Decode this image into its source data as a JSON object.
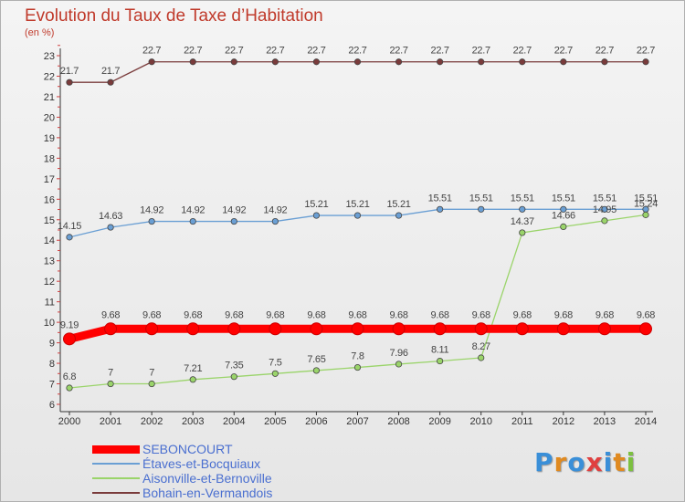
{
  "chart_data": {
    "type": "line",
    "title": "Evolution du Taux de Taxe d’Habitation",
    "ylabel": "(en %)",
    "xlabel": "",
    "x": [
      "2000",
      "2001",
      "2002",
      "2003",
      "2004",
      "2005",
      "2006",
      "2007",
      "2008",
      "2009",
      "2010",
      "2011",
      "2012",
      "2013",
      "2014"
    ],
    "ylim": [
      6,
      23
    ],
    "yticks": [
      6,
      7,
      8,
      9,
      10,
      11,
      12,
      13,
      14,
      15,
      16,
      17,
      18,
      19,
      20,
      21,
      22,
      23
    ],
    "grid": false,
    "legend_position": "bottom-left",
    "series": [
      {
        "name": "SEBONCOURT",
        "color": "#ff0000",
        "values": [
          9.19,
          9.68,
          9.68,
          9.68,
          9.68,
          9.68,
          9.68,
          9.68,
          9.68,
          9.68,
          9.68,
          9.68,
          9.68,
          9.68,
          9.68
        ],
        "labels": [
          "9.19",
          "9.68",
          "9.68",
          "9.68",
          "9.68",
          "9.68",
          "9.68",
          "9.68",
          "9.68",
          "9.68",
          "9.68",
          "9.68",
          "9.68",
          "9.68",
          "9.68"
        ]
      },
      {
        "name": "Étaves-et-Bocquiaux",
        "color": "#6a9fd4",
        "values": [
          14.15,
          14.63,
          14.92,
          14.92,
          14.92,
          14.92,
          15.21,
          15.21,
          15.21,
          15.51,
          15.51,
          15.51,
          15.51,
          15.51,
          15.51
        ],
        "labels": [
          "14.15",
          "14.63",
          "14.92",
          "14.92",
          "14.92",
          "14.92",
          "15.21",
          "15.21",
          "15.21",
          "15.51",
          "15.51",
          "15.51",
          "15.51",
          "15.51",
          "15.51"
        ]
      },
      {
        "name": "Aisonville-et-Bernoville",
        "color": "#9ad46a",
        "values": [
          6.8,
          7,
          7,
          7.21,
          7.35,
          7.5,
          7.65,
          7.8,
          7.96,
          8.11,
          8.27,
          14.37,
          14.66,
          14.95,
          15.24
        ],
        "labels": [
          "6.8",
          "7",
          "7",
          "7.21",
          "7.35",
          "7.5",
          "7.65",
          "7.8",
          "7.96",
          "8.11",
          "8.27",
          "14.37",
          "14.66",
          "14.95",
          "15.24"
        ]
      },
      {
        "name": "Bohain-en-Vermandois",
        "color": "#7a3b3b",
        "values": [
          21.7,
          21.7,
          22.7,
          22.7,
          22.7,
          22.7,
          22.7,
          22.7,
          22.7,
          22.7,
          22.7,
          22.7,
          22.7,
          22.7,
          22.7
        ],
        "labels": [
          "21.7",
          "21.7",
          "22.7",
          "22.7",
          "22.7",
          "22.7",
          "22.7",
          "22.7",
          "22.7",
          "22.7",
          "22.7",
          "22.7",
          "22.7",
          "22.7",
          "22.7"
        ]
      }
    ]
  },
  "legend": [
    "SEBONCOURT",
    "Étaves-et-Bocquiaux",
    "Aisonville-et-Bernoville",
    "Bohain-en-Vermandois"
  ],
  "logo": {
    "letters": [
      "P",
      "r",
      "o",
      "x",
      "i",
      "t",
      "i"
    ],
    "colors": [
      "#3a8fd8",
      "#e08a20",
      "#3a8fd8",
      "#e04040",
      "#3a8fd8",
      "#e08a20",
      "#7cc040"
    ]
  }
}
